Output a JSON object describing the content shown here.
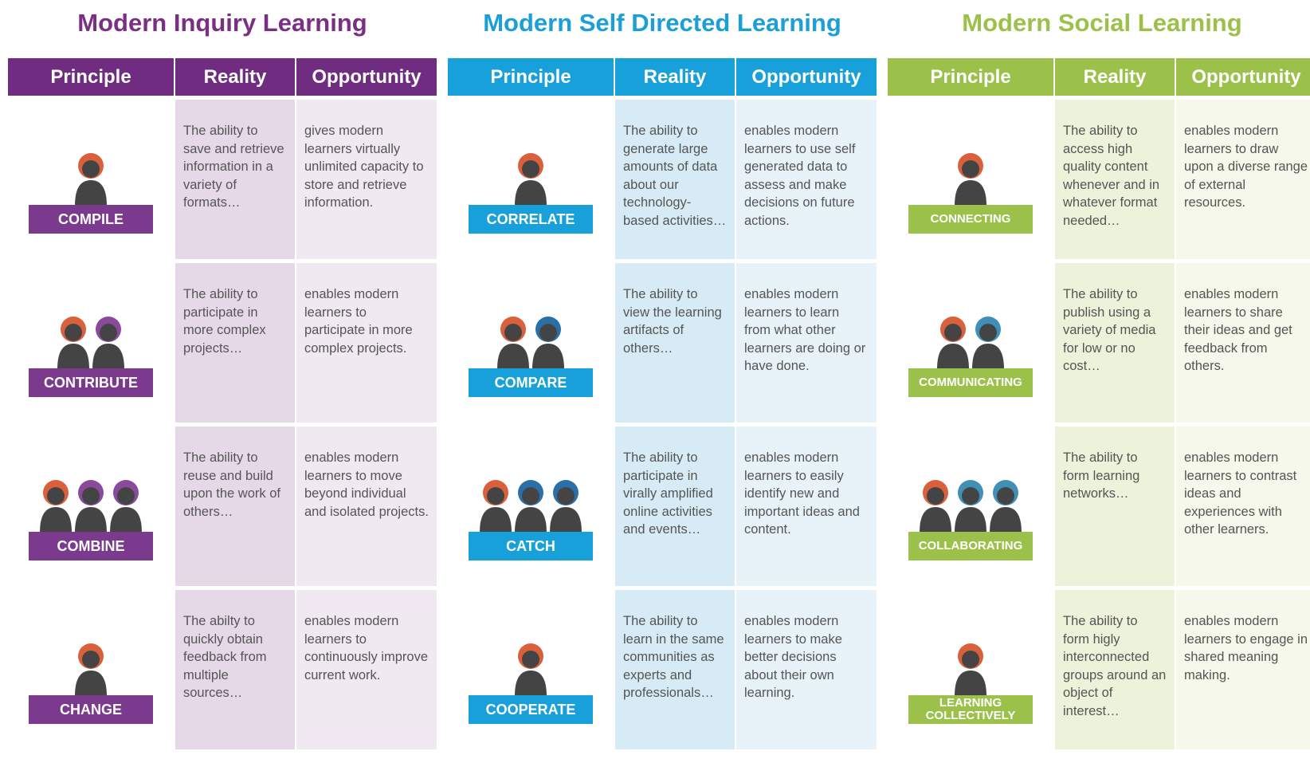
{
  "sections": [
    {
      "title": "Modern Inquiry Learning",
      "headers": [
        "Principle",
        "Reality",
        "Opportunity"
      ],
      "rows": [
        {
          "principle": "COMPILE",
          "reality": "The ability to save and retrieve information in a variety of formats…",
          "opportunity": "gives modern learners virtually unlimited capacity to store and retrieve information."
        },
        {
          "principle": "CONTRIBUTE",
          "reality": "The ability to participate in more complex projects…",
          "opportunity": "enables modern learners to participate in more complex projects."
        },
        {
          "principle": "COMBINE",
          "reality": "The ability to reuse and build upon the work of others…",
          "opportunity": "enables modern learners to move beyond individual and isolated projects."
        },
        {
          "principle": "CHANGE",
          "reality": "The abilty to quickly obtain feedback from multiple sources…",
          "opportunity": "enables modern learners to continuously improve current work."
        }
      ]
    },
    {
      "title": "Modern Self Directed Learning",
      "headers": [
        "Principle",
        "Reality",
        "Opportunity"
      ],
      "rows": [
        {
          "principle": "CORRELATE",
          "reality": "The ability to generate large amounts of data about our technology-based activities…",
          "opportunity": "enables modern learners to use self generated data to assess and make decisions on future actions."
        },
        {
          "principle": "COMPARE",
          "reality": "The ability to view the learning artifacts of others…",
          "opportunity": "enables modern learners to learn from what other learners are doing or have done."
        },
        {
          "principle": "CATCH",
          "reality": "The ability to participate in virally amplified online activities and events…",
          "opportunity": "enables modern learners to easily identify new and important ideas and content."
        },
        {
          "principle": "COOPERATE",
          "reality": "The ability to learn in the same communities as experts and professionals…",
          "opportunity": "enables modern learners to make better decisions about their own learning."
        }
      ]
    },
    {
      "title": "Modern Social Learning",
      "headers": [
        "Principle",
        "Reality",
        "Opportunity"
      ],
      "rows": [
        {
          "principle": "CONNECTING",
          "reality": "The ability to access high quality content whenever and in whatever format needed…",
          "opportunity": "enables modern learners to draw upon a diverse range of external resources."
        },
        {
          "principle": "COMMUNICATING",
          "reality": "The ability to publish using a variety of media for low or no cost…",
          "opportunity": "enables modern learners to share their ideas and get feedback from others."
        },
        {
          "principle": "COLLABORATING",
          "reality": "The ability to form learning networks…",
          "opportunity": "enables modern learners to contrast ideas and experiences with other learners."
        },
        {
          "principle": "LEARNING COLLECTIVELY",
          "reality": "The ability to form higly interconnected groups around an object of interest…",
          "opportunity": "enables modern learners to engage in shared meaning making."
        }
      ]
    }
  ]
}
